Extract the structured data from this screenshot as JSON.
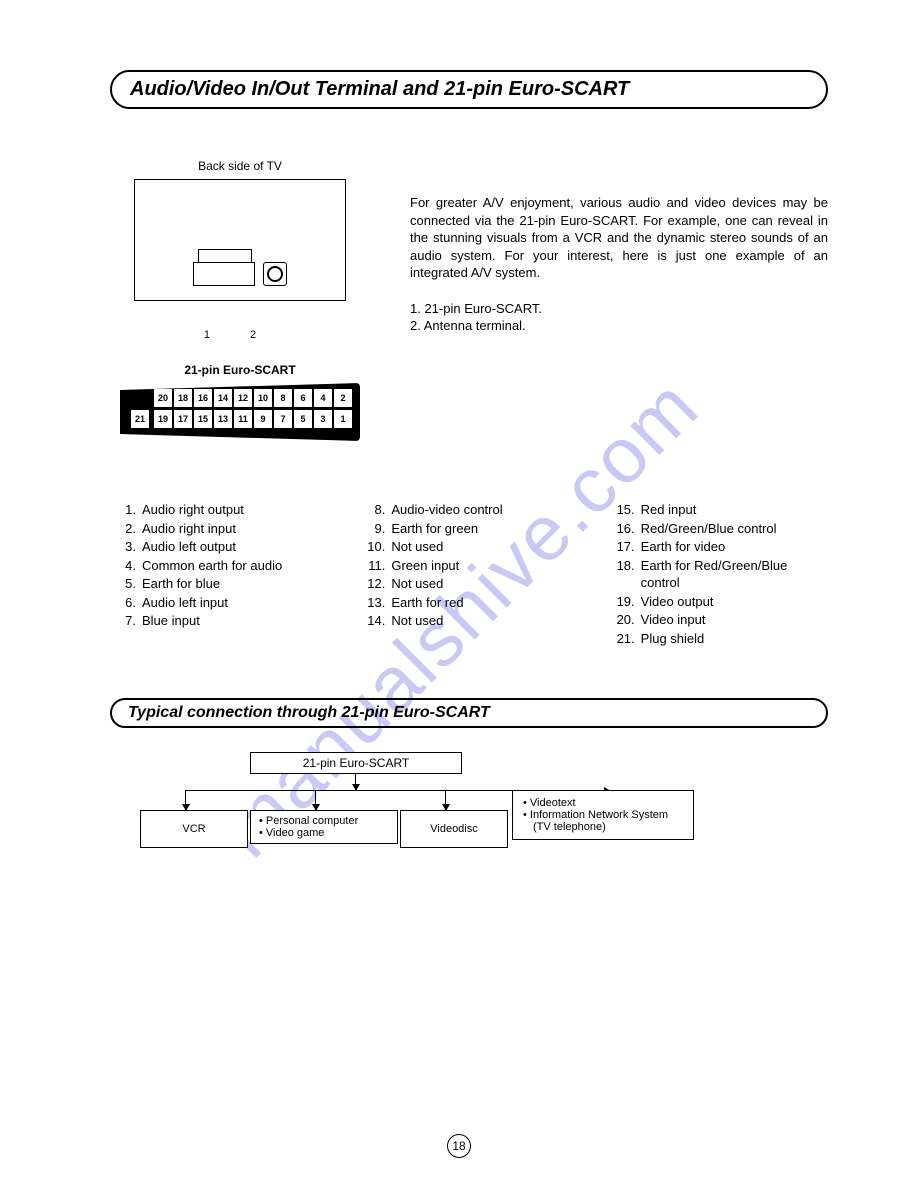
{
  "title1": "Audio/Video In/Out Terminal and 21-pin Euro-SCART",
  "tv_caption": "Back side of TV",
  "lead1": "1",
  "lead2": "2",
  "scart_label": "21-pin Euro-SCART",
  "intro_para": "For greater A/V enjoyment, various audio and video devices may be connected via the 21-pin Euro-SCART. For example, one can reveal in the stunning visuals from a VCR and the dynamic stereo sounds of an audio system. For your interest, here is just one example of an integrated A/V system.",
  "legend1": "1. 21-pin Euro-SCART.",
  "legend2": "2. Antenna terminal.",
  "pins_top": [
    "20",
    "18",
    "16",
    "14",
    "12",
    "10",
    "8",
    "6",
    "4",
    "2"
  ],
  "pins_bot": [
    "21",
    "19",
    "17",
    "15",
    "13",
    "11",
    "9",
    "7",
    "5",
    "3",
    "1"
  ],
  "pin_list": [
    {
      "n": "1.",
      "t": "Audio right output"
    },
    {
      "n": "2.",
      "t": "Audio right input"
    },
    {
      "n": "3.",
      "t": "Audio left output"
    },
    {
      "n": "4.",
      "t": "Common earth for audio"
    },
    {
      "n": "5.",
      "t": "Earth for blue"
    },
    {
      "n": "6.",
      "t": "Audio left input"
    },
    {
      "n": "7.",
      "t": "Blue input"
    },
    {
      "n": "8.",
      "t": "Audio-video control"
    },
    {
      "n": "9.",
      "t": "Earth for green"
    },
    {
      "n": "10.",
      "t": "Not used"
    },
    {
      "n": "11.",
      "t": "Green input"
    },
    {
      "n": "12.",
      "t": "Not used"
    },
    {
      "n": "13.",
      "t": "Earth for red"
    },
    {
      "n": "14.",
      "t": "Not used"
    },
    {
      "n": "15.",
      "t": "Red input"
    },
    {
      "n": "16.",
      "t": "Red/Green/Blue control"
    },
    {
      "n": "17.",
      "t": "Earth for video"
    },
    {
      "n": "18.",
      "t": "Earth for Red/Green/Blue control"
    },
    {
      "n": "19.",
      "t": "Video output"
    },
    {
      "n": "20.",
      "t": "Video input"
    },
    {
      "n": "21.",
      "t": "Plug shield"
    }
  ],
  "title2": "Typical connection through 21-pin Euro-SCART",
  "conn_top": "21-pin Euro-SCART",
  "box_vcr": "VCR",
  "box_pc1": "Personal computer",
  "box_pc2": "Video game",
  "box_vd": "Videodisc",
  "box_vt1": "Videotext",
  "box_vt2": "Information Network System",
  "box_vt3": "(TV telephone)",
  "page_num": "18",
  "watermark": "manualshive.com"
}
